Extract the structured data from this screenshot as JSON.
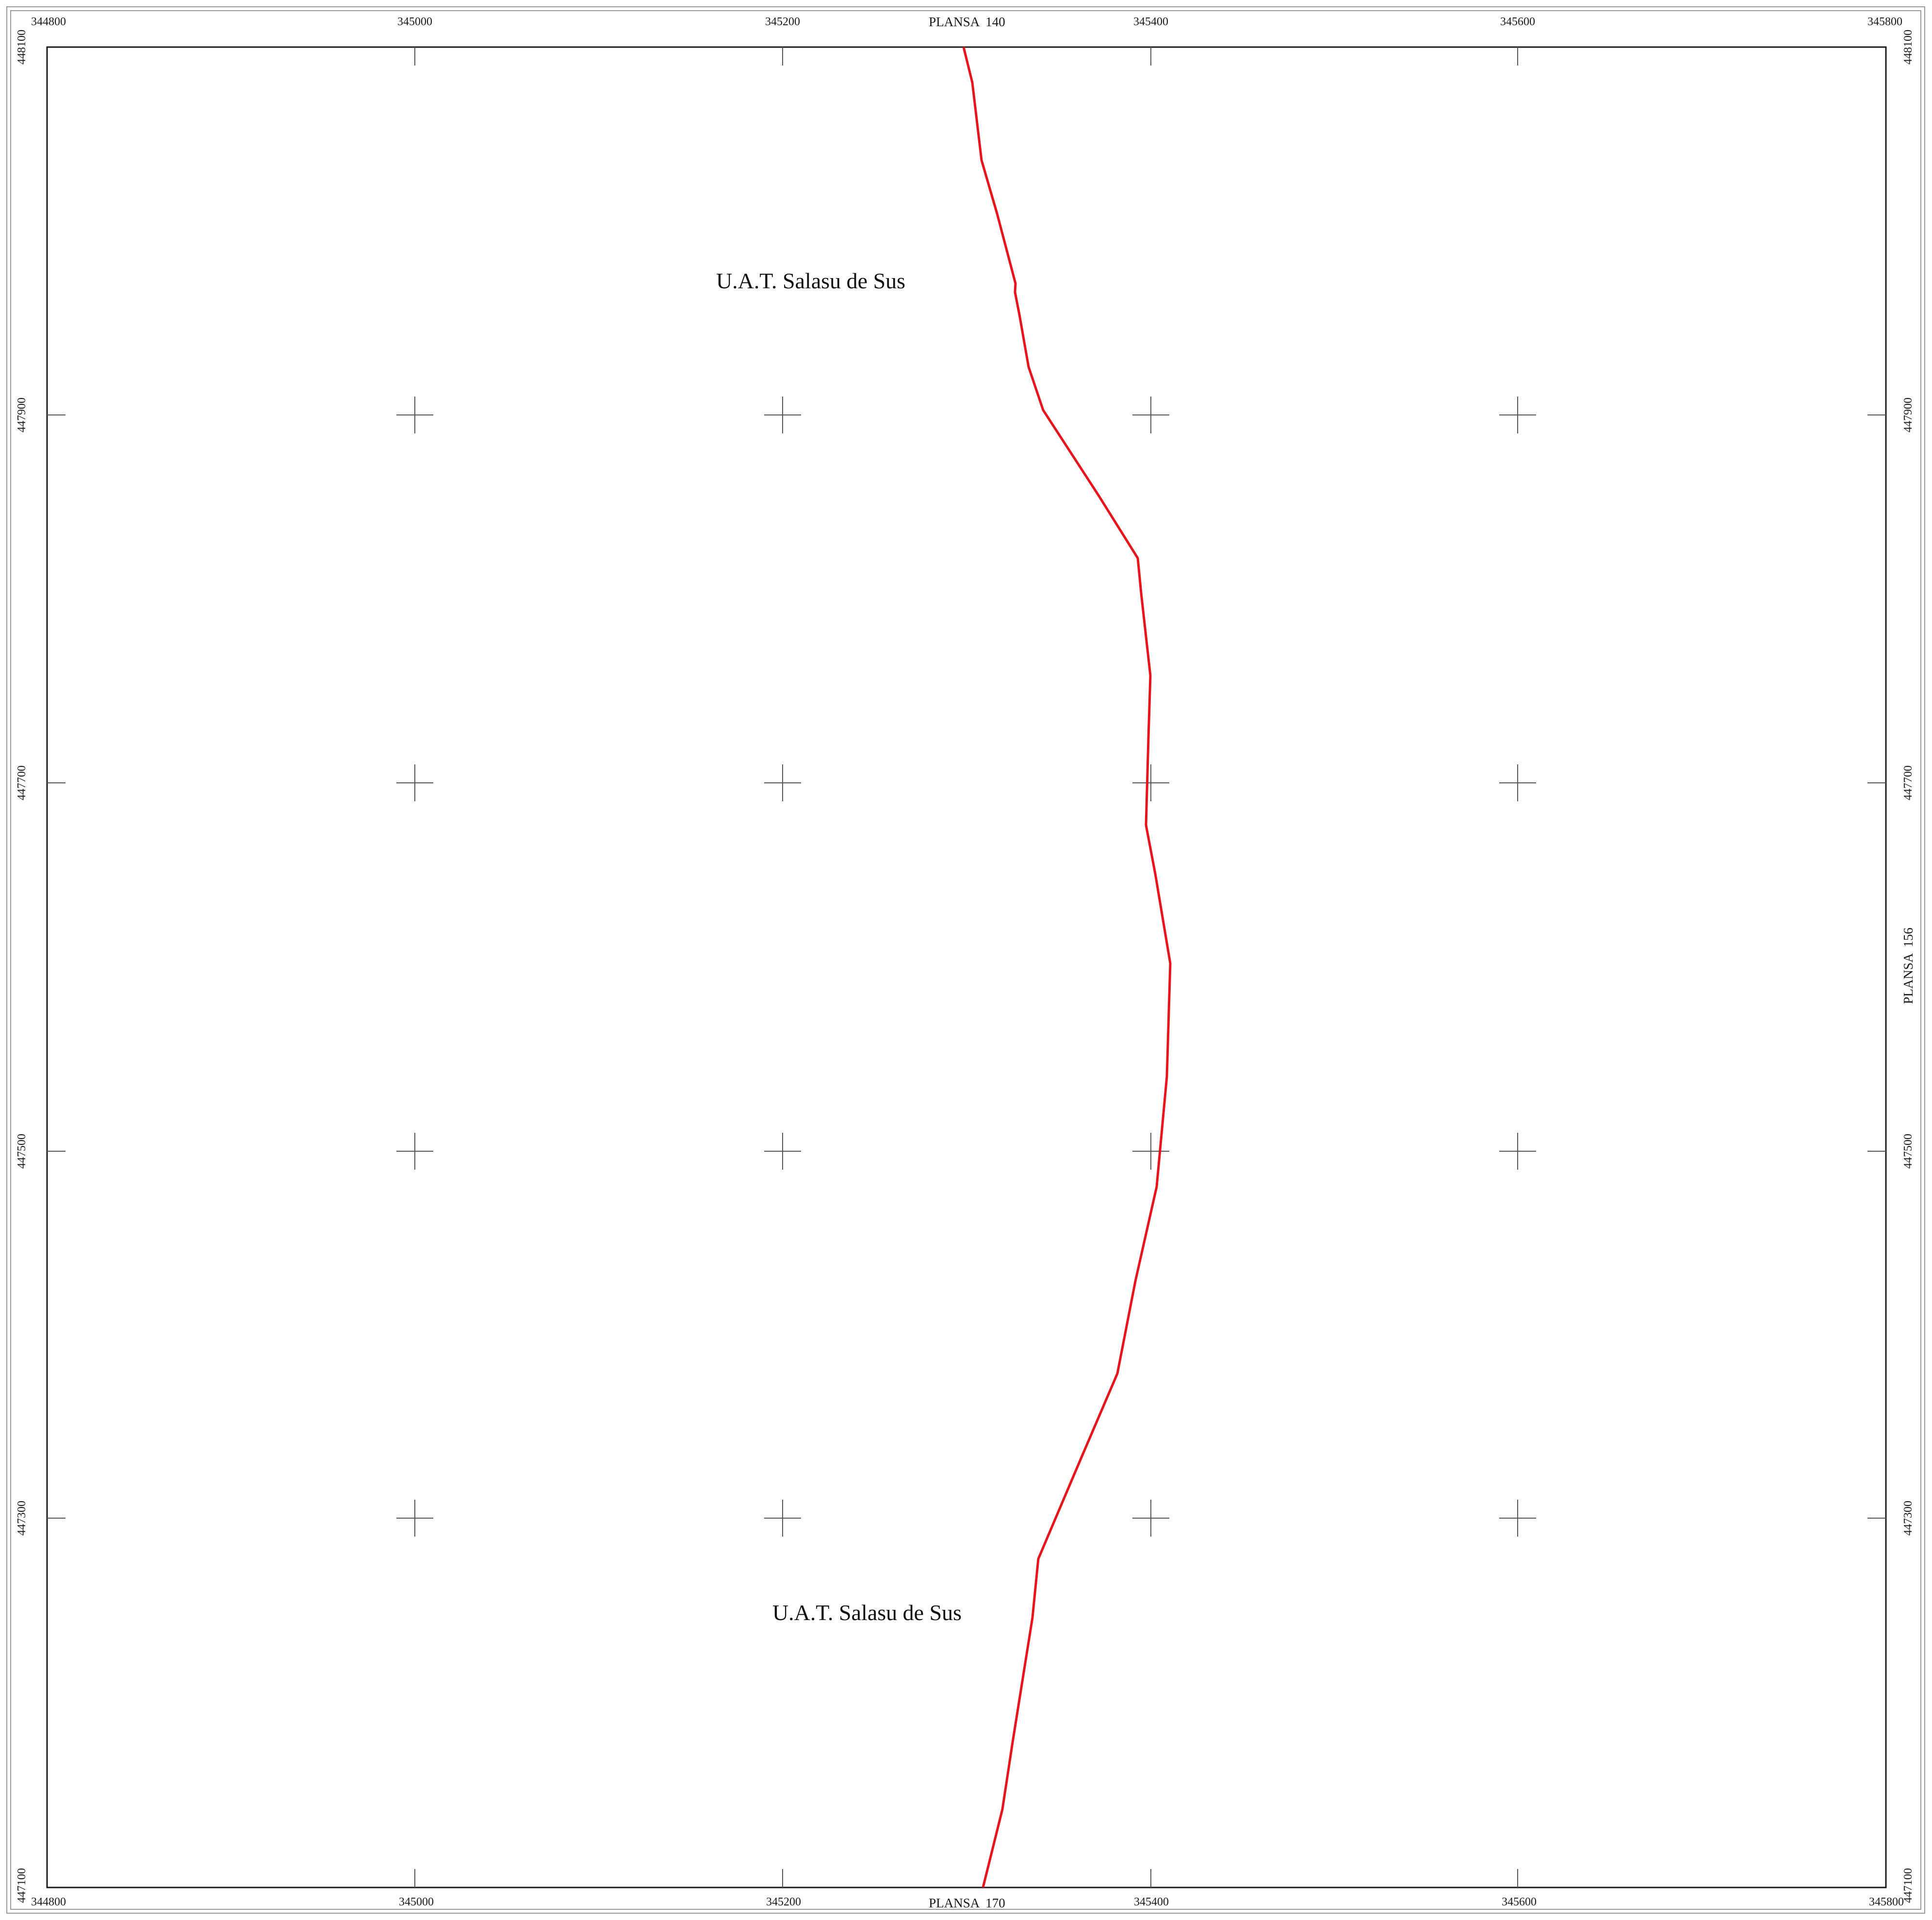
{
  "map": {
    "x_ticks": [
      "344800",
      "345000",
      "345200",
      "345400",
      "345600",
      "345800"
    ],
    "y_ticks": [
      "448100",
      "447900",
      "447700",
      "447500",
      "447300",
      "447100"
    ],
    "adjacent_sheets": {
      "north": "PLANSA  140",
      "south": "PLANSA  170",
      "east": "PLANSA  156"
    },
    "area_labels": {
      "north": "U.A.T. Salasu de Sus",
      "south": "U.A.T. Salasu de Sus"
    },
    "boundary_color": "#e8141c",
    "frame_color": "#1a1a1a",
    "cross_color": "#555555"
  }
}
